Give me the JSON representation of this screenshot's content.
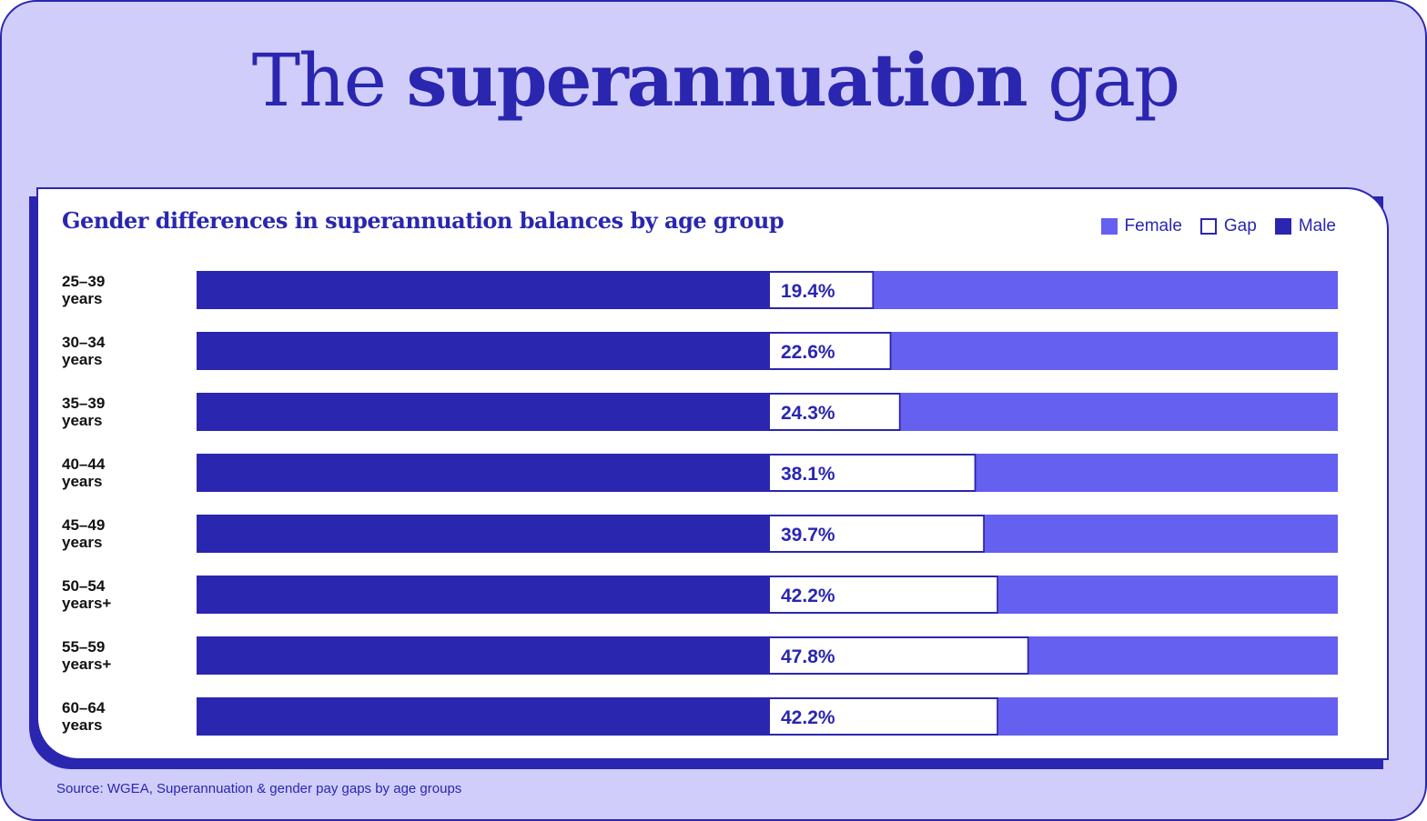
{
  "header": {
    "title_prefix": "The",
    "title_bold": "superannuation",
    "title_suffix": "gap"
  },
  "colors": {
    "male": "#2a26b0",
    "female": "#6560f0",
    "gap": "#ffffff",
    "background": "#d0cdfb"
  },
  "chart_data": {
    "type": "bar",
    "orientation": "horizontal",
    "stacked": true,
    "title": "Gender differences in superannuation balances by age group",
    "legend": {
      "placement": "top-right",
      "entries": [
        "Female",
        "Gap",
        "Male"
      ]
    },
    "categories": [
      [
        "25–39",
        "years"
      ],
      [
        "30–34",
        "years"
      ],
      [
        "35–39",
        "years"
      ],
      [
        "40–44",
        "years"
      ],
      [
        "45–49",
        "years"
      ],
      [
        "50–54",
        "years+"
      ],
      [
        "55–59",
        "years+"
      ],
      [
        "60–64",
        "years"
      ]
    ],
    "gap_values": [
      19.4,
      22.6,
      24.3,
      38.1,
      39.7,
      42.2,
      47.8,
      42.2
    ],
    "gap_labels": [
      "19.4%",
      "22.6%",
      "24.3%",
      "38.1%",
      "39.7%",
      "42.2%",
      "47.8%",
      "42.2%"
    ],
    "unit": "%"
  },
  "footer": {
    "source": "Source: WGEA, Superannuation & gender pay gaps by age groups"
  }
}
